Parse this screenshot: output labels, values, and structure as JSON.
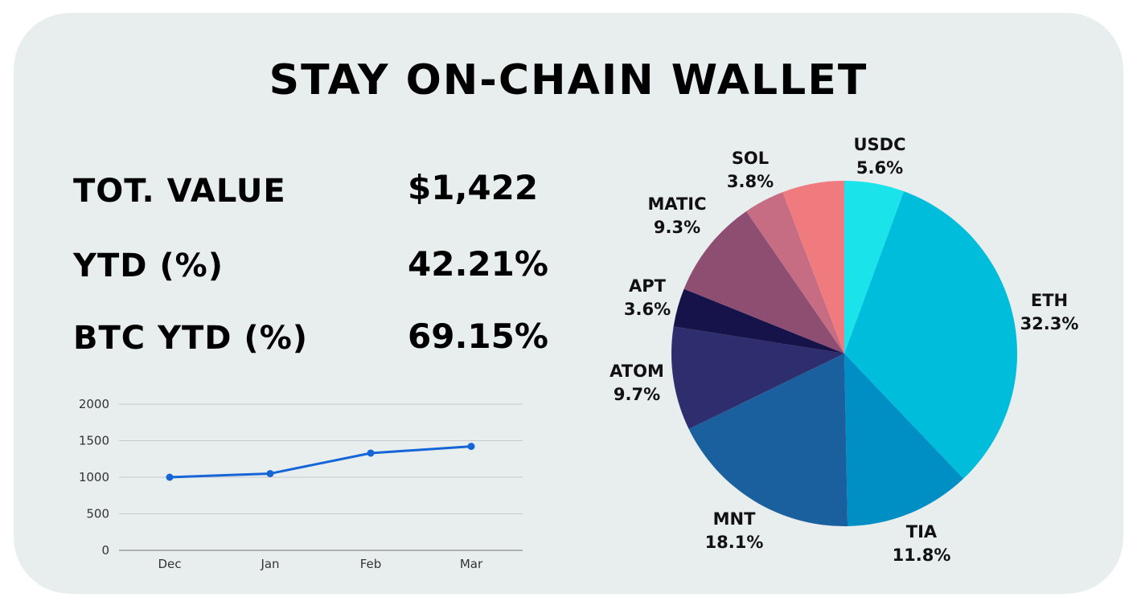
{
  "header": {
    "title": "STAY ON-CHAIN WALLET"
  },
  "stats": [
    {
      "label": "TOT. VALUE",
      "value": "$1,422"
    },
    {
      "label": "YTD (%)",
      "value": "42.21%"
    },
    {
      "label": "BTC YTD (%)",
      "value": "69.15%"
    }
  ],
  "chart_data": [
    {
      "type": "line",
      "categories": [
        "Dec",
        "Jan",
        "Feb",
        "Mar"
      ],
      "values": [
        1000,
        1050,
        1330,
        1422
      ],
      "ylim": [
        0,
        2000
      ],
      "yticks": [
        "0",
        "500",
        "1000",
        "1500",
        "2000"
      ],
      "grid": true,
      "color": "#1565d8"
    },
    {
      "type": "pie",
      "slices": [
        {
          "label": "USDC",
          "pct_label": "5.6%",
          "value": 5.6,
          "color": "#1ae3ea"
        },
        {
          "label": "ETH",
          "pct_label": "32.3%",
          "value": 32.3,
          "color": "#00bddb"
        },
        {
          "label": "TIA",
          "pct_label": "11.8%",
          "value": 11.8,
          "color": "#008fc4"
        },
        {
          "label": "MNT",
          "pct_label": "18.1%",
          "value": 18.1,
          "color": "#1a5f9e"
        },
        {
          "label": "ATOM",
          "pct_label": "9.7%",
          "value": 9.7,
          "color": "#2e2e6e"
        },
        {
          "label": "APT",
          "pct_label": "3.6%",
          "value": 3.6,
          "color": "#16134a"
        },
        {
          "label": "MATIC",
          "pct_label": "9.3%",
          "value": 9.3,
          "color": "#8d4e72"
        },
        {
          "label": "SOL",
          "pct_label": "3.8%",
          "value": 3.8,
          "color": "#c66d84"
        },
        {
          "label": "",
          "pct_label": "",
          "value": 5.8,
          "color": "#f07b7e"
        }
      ]
    }
  ]
}
